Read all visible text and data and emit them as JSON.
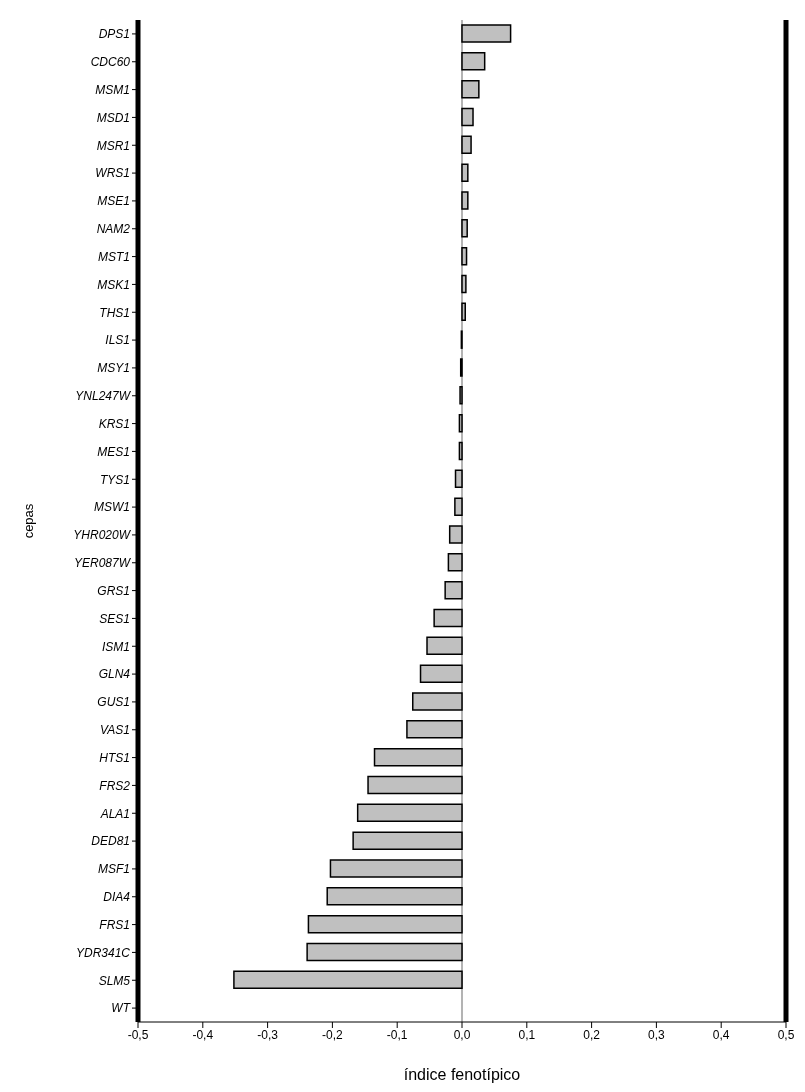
{
  "chart_data": {
    "type": "bar",
    "orientation": "horizontal",
    "xlabel": "índice fenotípico",
    "ylabel": "cepas",
    "categories": [
      "DPS1",
      "CDC60",
      "MSM1",
      "MSD1",
      "MSR1",
      "WRS1",
      "MSE1",
      "NAM2",
      "MST1",
      "MSK1",
      "THS1",
      "ILS1",
      "MSY1",
      "YNL247W",
      "KRS1",
      "MES1",
      "TYS1",
      "MSW1",
      "YHR020W",
      "YER087W",
      "GRS1",
      "SES1",
      "ISM1",
      "GLN4",
      "GUS1",
      "VAS1",
      "HTS1",
      "FRS2",
      "ALA1",
      "DED81",
      "MSF1",
      "DIA4",
      "FRS1",
      "YDR341C",
      "SLM5",
      "WT"
    ],
    "values": [
      0.075,
      0.035,
      0.026,
      0.017,
      0.014,
      0.009,
      0.009,
      0.008,
      0.007,
      0.006,
      0.005,
      -0.001,
      -0.002,
      -0.003,
      -0.004,
      -0.004,
      -0.01,
      -0.011,
      -0.019,
      -0.021,
      -0.026,
      -0.043,
      -0.054,
      -0.064,
      -0.076,
      -0.085,
      -0.135,
      -0.145,
      -0.161,
      -0.168,
      -0.203,
      -0.208,
      -0.237,
      -0.239,
      -0.352,
      0
    ],
    "color": "#c0c0c0",
    "xlim": [
      -0.5,
      0.5
    ],
    "xticks": [
      {
        "value": -0.5,
        "label": "-0,5"
      },
      {
        "value": -0.4,
        "label": "-0,4"
      },
      {
        "value": -0.3,
        "label": "-0,3"
      },
      {
        "value": -0.2,
        "label": "-0,2"
      },
      {
        "value": -0.1,
        "label": "-0,1"
      },
      {
        "value": 0,
        "label": "0,0"
      },
      {
        "value": 0.1,
        "label": "0,1"
      },
      {
        "value": 0.2,
        "label": "0,2"
      },
      {
        "value": 0.3,
        "label": "0,3"
      },
      {
        "value": 0.4,
        "label": "0,4"
      },
      {
        "value": 0.5,
        "label": "0,5"
      }
    ],
    "ref_lines": [
      {
        "axis": "x",
        "value": 0,
        "color": "#000000"
      }
    ],
    "grid": false,
    "legend": false
  }
}
